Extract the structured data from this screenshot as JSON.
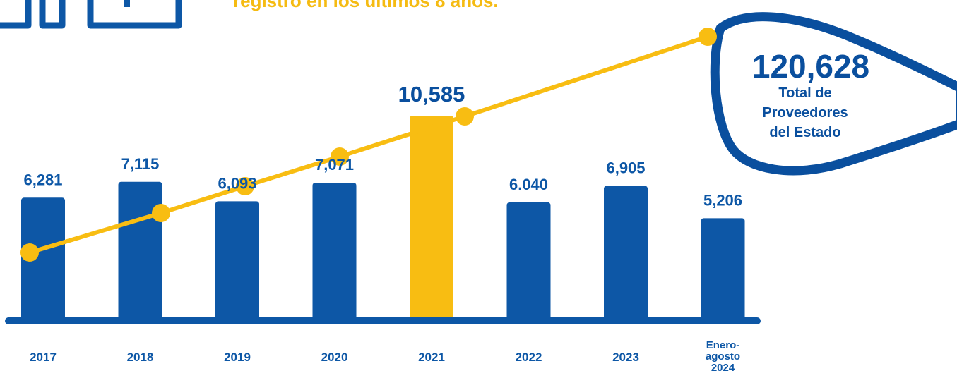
{
  "heading": "registro en los últimos 8 años.",
  "colors": {
    "bar": "#0d57a6",
    "highlight": "#f8bd12",
    "line": "#f8bd12",
    "text": "#0d57a6"
  },
  "icons": [
    "document-icon",
    "document-icon"
  ],
  "total": {
    "value": "120,628",
    "caption": [
      "Total de",
      "Proveedores",
      "del Estado"
    ]
  },
  "chart_data": {
    "type": "bar",
    "categories": [
      "2017",
      "2018",
      "2019",
      "2020",
      "2021",
      "2022",
      "2023",
      "Enero-agosto 2024"
    ],
    "category_lines": [
      [
        "2017"
      ],
      [
        "2018"
      ],
      [
        "2019"
      ],
      [
        "2020"
      ],
      [
        "2021"
      ],
      [
        "2022"
      ],
      [
        "2023"
      ],
      [
        "Enero-",
        "agosto",
        "2024"
      ]
    ],
    "values": [
      6281,
      7115,
      6093,
      7071,
      10585,
      6040,
      6905,
      5206
    ],
    "data_labels": [
      "6,281",
      "7,115",
      "6,093",
      "7,071",
      "10,585",
      "6.040",
      "6,905",
      "5,206"
    ],
    "highlight_index": 4,
    "ylim": [
      0,
      11000
    ],
    "grid": false,
    "trend_line": {
      "type": "line",
      "note": "cumulative growth (decorative, no scale)",
      "points": 8
    }
  }
}
